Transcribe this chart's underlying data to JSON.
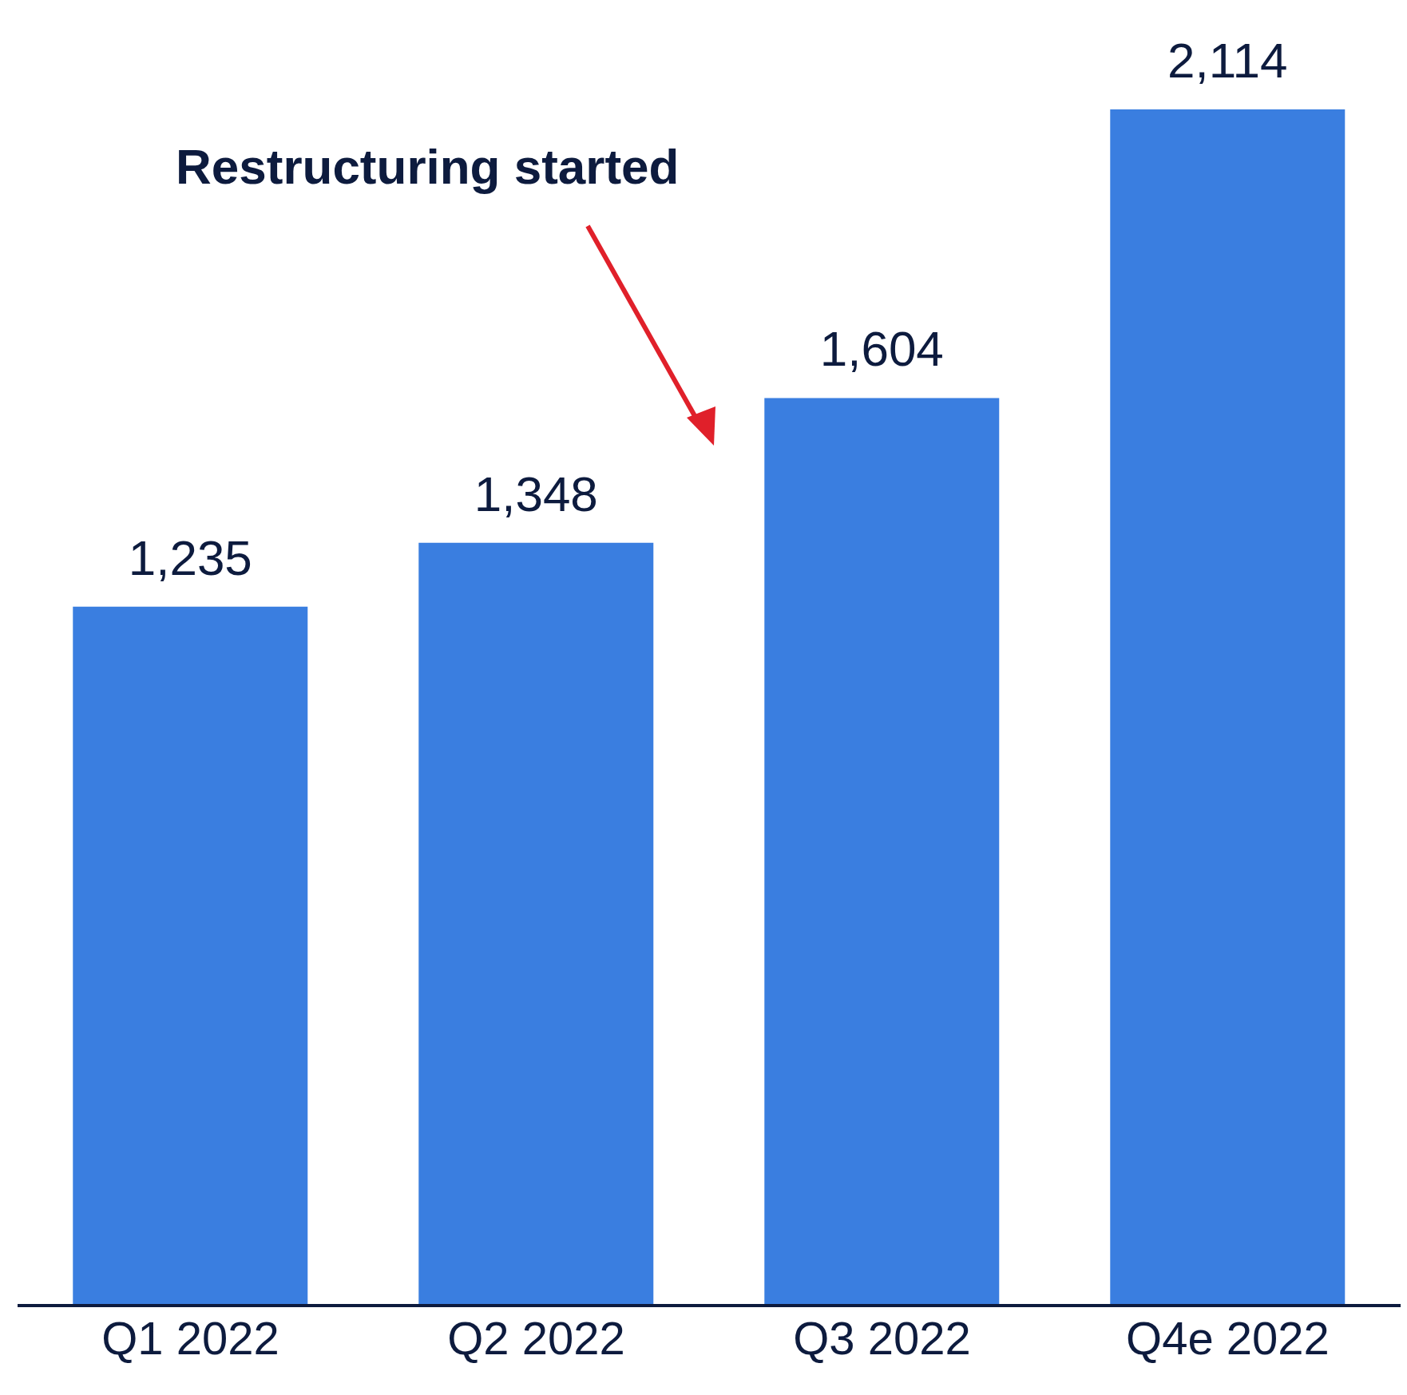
{
  "chart_data": {
    "type": "bar",
    "categories": [
      "Q1 2022",
      "Q2 2022",
      "Q3 2022",
      "Q4e 2022"
    ],
    "values": [
      1235,
      1348,
      1604,
      2114
    ],
    "value_labels": [
      "1,235",
      "1,348",
      "1,604",
      "2,114"
    ],
    "color": "#3a7ee0",
    "annotations": [
      "Restructuring started"
    ]
  }
}
